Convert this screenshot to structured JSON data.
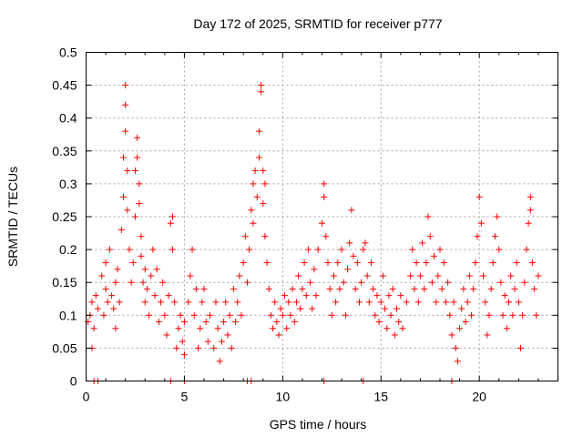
{
  "chart_data": {
    "type": "scatter",
    "title": "Day 172 of 2025, SRMTID for receiver p777",
    "xlabel": "GPS time / hours",
    "ylabel": "SRMTID / TECUs",
    "xlim": [
      0,
      24
    ],
    "ylim": [
      0,
      0.5
    ],
    "xticks": [
      0,
      5,
      10,
      15,
      20
    ],
    "xtick_labels": [
      "0",
      "5",
      "10",
      "15",
      "20"
    ],
    "yticks": [
      0,
      0.05,
      0.1,
      0.15,
      0.2,
      0.25,
      0.3,
      0.35,
      0.4,
      0.45,
      0.5
    ],
    "ytick_labels": [
      "0",
      "0.05",
      "0.1",
      "0.15",
      "0.2",
      "0.25",
      "0.3",
      "0.35",
      "0.4",
      "0.45",
      "0.5"
    ],
    "grid": true,
    "marker": "+",
    "color": "#ff0000",
    "zero_markers_x": [
      0.4,
      0.6,
      4.3,
      5.0,
      8.2,
      8.4,
      12.1,
      14.1,
      18.6
    ],
    "series": [
      {
        "name": "SRMTID",
        "points": [
          [
            0.1,
            0.09
          ],
          [
            0.2,
            0.1
          ],
          [
            0.3,
            0.12
          ],
          [
            0.3,
            0.05
          ],
          [
            0.4,
            0.08
          ],
          [
            0.5,
            0.13
          ],
          [
            0.6,
            0.11
          ],
          [
            0.8,
            0.16
          ],
          [
            0.9,
            0.1
          ],
          [
            1.0,
            0.14
          ],
          [
            1.0,
            0.18
          ],
          [
            1.1,
            0.12
          ],
          [
            1.2,
            0.2
          ],
          [
            1.3,
            0.13
          ],
          [
            1.4,
            0.11
          ],
          [
            1.5,
            0.15
          ],
          [
            1.5,
            0.08
          ],
          [
            1.6,
            0.17
          ],
          [
            1.7,
            0.12
          ],
          [
            1.8,
            0.23
          ],
          [
            1.9,
            0.28
          ],
          [
            1.9,
            0.34
          ],
          [
            2.0,
            0.38
          ],
          [
            2.0,
            0.42
          ],
          [
            2.0,
            0.45
          ],
          [
            2.1,
            0.32
          ],
          [
            2.1,
            0.26
          ],
          [
            2.2,
            0.2
          ],
          [
            2.3,
            0.15
          ],
          [
            2.4,
            0.18
          ],
          [
            2.5,
            0.25
          ],
          [
            2.5,
            0.32
          ],
          [
            2.6,
            0.37
          ],
          [
            2.6,
            0.34
          ],
          [
            2.7,
            0.3
          ],
          [
            2.7,
            0.27
          ],
          [
            2.8,
            0.22
          ],
          [
            2.8,
            0.19
          ],
          [
            2.9,
            0.15
          ],
          [
            3.0,
            0.12
          ],
          [
            3.0,
            0.17
          ],
          [
            3.1,
            0.14
          ],
          [
            3.2,
            0.1
          ],
          [
            3.3,
            0.16
          ],
          [
            3.4,
            0.2
          ],
          [
            3.5,
            0.13
          ],
          [
            3.6,
            0.17
          ],
          [
            3.7,
            0.09
          ],
          [
            3.8,
            0.12
          ],
          [
            3.9,
            0.15
          ],
          [
            4.0,
            0.1
          ],
          [
            4.1,
            0.07
          ],
          [
            4.2,
            0.13
          ],
          [
            4.3,
            0.24
          ],
          [
            4.4,
            0.25
          ],
          [
            4.4,
            0.2
          ],
          [
            4.5,
            0.12
          ],
          [
            4.6,
            0.05
          ],
          [
            4.7,
            0.08
          ],
          [
            4.8,
            0.1
          ],
          [
            4.9,
            0.06
          ],
          [
            5.0,
            0.04
          ],
          [
            5.0,
            0.09
          ],
          [
            5.2,
            0.12
          ],
          [
            5.3,
            0.16
          ],
          [
            5.4,
            0.2
          ],
          [
            5.5,
            0.1
          ],
          [
            5.6,
            0.14
          ],
          [
            5.7,
            0.05
          ],
          [
            5.8,
            0.08
          ],
          [
            5.9,
            0.12
          ],
          [
            6.0,
            0.14
          ],
          [
            6.1,
            0.09
          ],
          [
            6.2,
            0.06
          ],
          [
            6.3,
            0.1
          ],
          [
            6.5,
            0.05
          ],
          [
            6.6,
            0.12
          ],
          [
            6.7,
            0.08
          ],
          [
            6.8,
            0.03
          ],
          [
            6.9,
            0.06
          ],
          [
            7.0,
            0.09
          ],
          [
            7.1,
            0.12
          ],
          [
            7.2,
            0.07
          ],
          [
            7.3,
            0.1
          ],
          [
            7.4,
            0.05
          ],
          [
            7.5,
            0.14
          ],
          [
            7.6,
            0.09
          ],
          [
            7.7,
            0.12
          ],
          [
            7.8,
            0.16
          ],
          [
            7.9,
            0.1
          ],
          [
            8.0,
            0.18
          ],
          [
            8.1,
            0.22
          ],
          [
            8.2,
            0.15
          ],
          [
            8.3,
            0.2
          ],
          [
            8.4,
            0.26
          ],
          [
            8.5,
            0.3
          ],
          [
            8.5,
            0.24
          ],
          [
            8.6,
            0.32
          ],
          [
            8.7,
            0.28
          ],
          [
            8.8,
            0.34
          ],
          [
            8.8,
            0.38
          ],
          [
            8.9,
            0.45
          ],
          [
            8.9,
            0.44
          ],
          [
            9.0,
            0.32
          ],
          [
            9.0,
            0.27
          ],
          [
            9.1,
            0.3
          ],
          [
            9.1,
            0.22
          ],
          [
            9.2,
            0.18
          ],
          [
            9.3,
            0.14
          ],
          [
            9.4,
            0.1
          ],
          [
            9.5,
            0.08
          ],
          [
            9.6,
            0.12
          ],
          [
            9.7,
            0.09
          ],
          [
            9.8,
            0.07
          ],
          [
            9.9,
            0.11
          ],
          [
            10.0,
            0.1
          ],
          [
            10.1,
            0.13
          ],
          [
            10.2,
            0.08
          ],
          [
            10.3,
            0.12
          ],
          [
            10.4,
            0.1
          ],
          [
            10.5,
            0.14
          ],
          [
            10.6,
            0.09
          ],
          [
            10.7,
            0.12
          ],
          [
            10.8,
            0.16
          ],
          [
            10.9,
            0.11
          ],
          [
            11.0,
            0.14
          ],
          [
            11.1,
            0.18
          ],
          [
            11.2,
            0.13
          ],
          [
            11.3,
            0.2
          ],
          [
            11.4,
            0.15
          ],
          [
            11.5,
            0.11
          ],
          [
            11.6,
            0.17
          ],
          [
            11.7,
            0.13
          ],
          [
            11.8,
            0.2
          ],
          [
            12.0,
            0.24
          ],
          [
            12.1,
            0.3
          ],
          [
            12.1,
            0.28
          ],
          [
            12.2,
            0.22
          ],
          [
            12.3,
            0.18
          ],
          [
            12.4,
            0.14
          ],
          [
            12.5,
            0.1
          ],
          [
            12.6,
            0.16
          ],
          [
            12.7,
            0.12
          ],
          [
            12.8,
            0.18
          ],
          [
            12.9,
            0.14
          ],
          [
            13.0,
            0.2
          ],
          [
            13.1,
            0.15
          ],
          [
            13.2,
            0.1
          ],
          [
            13.3,
            0.17
          ],
          [
            13.4,
            0.21
          ],
          [
            13.5,
            0.26
          ],
          [
            13.6,
            0.19
          ],
          [
            13.7,
            0.14
          ],
          [
            13.8,
            0.18
          ],
          [
            13.9,
            0.12
          ],
          [
            14.0,
            0.15
          ],
          [
            14.1,
            0.2
          ],
          [
            14.2,
            0.21
          ],
          [
            14.3,
            0.16
          ],
          [
            14.4,
            0.12
          ],
          [
            14.5,
            0.18
          ],
          [
            14.6,
            0.14
          ],
          [
            14.7,
            0.1
          ],
          [
            14.8,
            0.13
          ],
          [
            14.9,
            0.09
          ],
          [
            15.0,
            0.12
          ],
          [
            15.1,
            0.16
          ],
          [
            15.2,
            0.11
          ],
          [
            15.3,
            0.08
          ],
          [
            15.4,
            0.13
          ],
          [
            15.5,
            0.1
          ],
          [
            15.6,
            0.14
          ],
          [
            15.7,
            0.07
          ],
          [
            15.8,
            0.11
          ],
          [
            15.9,
            0.09
          ],
          [
            16.0,
            0.13
          ],
          [
            16.1,
            0.08
          ],
          [
            16.3,
            0.12
          ],
          [
            16.5,
            0.16
          ],
          [
            16.6,
            0.2
          ],
          [
            16.7,
            0.14
          ],
          [
            16.8,
            0.18
          ],
          [
            16.9,
            0.12
          ],
          [
            17.0,
            0.16
          ],
          [
            17.1,
            0.21
          ],
          [
            17.2,
            0.14
          ],
          [
            17.3,
            0.18
          ],
          [
            17.4,
            0.25
          ],
          [
            17.5,
            0.22
          ],
          [
            17.6,
            0.15
          ],
          [
            17.7,
            0.19
          ],
          [
            17.8,
            0.12
          ],
          [
            17.9,
            0.16
          ],
          [
            18.0,
            0.2
          ],
          [
            18.1,
            0.14
          ],
          [
            18.2,
            0.18
          ],
          [
            18.3,
            0.12
          ],
          [
            18.4,
            0.15
          ],
          [
            18.5,
            0.1
          ],
          [
            18.6,
            0.07
          ],
          [
            18.7,
            0.12
          ],
          [
            18.8,
            0.05
          ],
          [
            18.9,
            0.03
          ],
          [
            19.0,
            0.08
          ],
          [
            19.1,
            0.11
          ],
          [
            19.2,
            0.14
          ],
          [
            19.3,
            0.09
          ],
          [
            19.4,
            0.12
          ],
          [
            19.5,
            0.16
          ],
          [
            19.6,
            0.1
          ],
          [
            19.7,
            0.14
          ],
          [
            19.8,
            0.18
          ],
          [
            19.9,
            0.22
          ],
          [
            20.0,
            0.28
          ],
          [
            20.1,
            0.24
          ],
          [
            20.2,
            0.16
          ],
          [
            20.3,
            0.12
          ],
          [
            20.4,
            0.07
          ],
          [
            20.5,
            0.1
          ],
          [
            20.6,
            0.14
          ],
          [
            20.7,
            0.18
          ],
          [
            20.8,
            0.22
          ],
          [
            20.9,
            0.25
          ],
          [
            21.0,
            0.2
          ],
          [
            21.1,
            0.15
          ],
          [
            21.2,
            0.1
          ],
          [
            21.3,
            0.13
          ],
          [
            21.4,
            0.08
          ],
          [
            21.5,
            0.12
          ],
          [
            21.6,
            0.16
          ],
          [
            21.7,
            0.1
          ],
          [
            21.8,
            0.14
          ],
          [
            21.9,
            0.18
          ],
          [
            22.0,
            0.12
          ],
          [
            22.1,
            0.05
          ],
          [
            22.2,
            0.1
          ],
          [
            22.3,
            0.15
          ],
          [
            22.4,
            0.2
          ],
          [
            22.5,
            0.24
          ],
          [
            22.6,
            0.28
          ],
          [
            22.6,
            0.26
          ],
          [
            22.7,
            0.18
          ],
          [
            22.8,
            0.14
          ],
          [
            22.9,
            0.1
          ],
          [
            23.0,
            0.16
          ]
        ]
      }
    ]
  }
}
